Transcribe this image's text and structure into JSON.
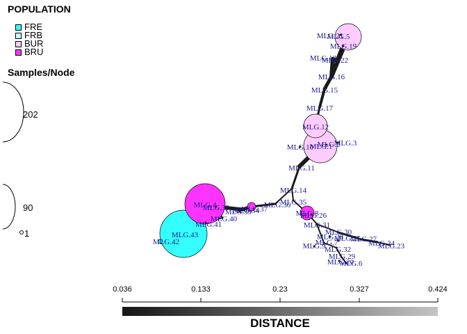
{
  "legend": {
    "population_title": "POPULATION",
    "populations": [
      {
        "label": "FRE",
        "color": "#33ffff"
      },
      {
        "label": "FRB",
        "color": "#ccffff"
      },
      {
        "label": "BUR",
        "color": "#ffccff"
      },
      {
        "label": "BRU",
        "color": "#ff33ff"
      }
    ],
    "samples_title": "Samples/Node",
    "sizes": [
      "202",
      "90",
      "1"
    ]
  },
  "scale": {
    "title": "DISTANCE",
    "ticks": [
      "0.036",
      "0.133",
      "0.23",
      "0.327",
      "0.424"
    ]
  },
  "colors": {
    "node_label": "#1a1a8c",
    "edge": "#1a1a1a",
    "outline": "#000000"
  },
  "nodes": [
    {
      "id": "MLG.5",
      "label": "MLG.5",
      "color": "#ffccff"
    },
    {
      "id": "MLG.21",
      "label": "MLG.21",
      "color": "#ffccff"
    },
    {
      "id": "MLG.19",
      "label": "MLG.19",
      "color": "#ffccff"
    },
    {
      "id": "MLG.22",
      "label": "MLG.22",
      "color": "#ffccff"
    },
    {
      "id": "MLG.18",
      "label": "MLG.18",
      "color": "#ffccff"
    },
    {
      "id": "MLG.16",
      "label": "MLG.16",
      "color": "#ffccff"
    },
    {
      "id": "MLG.15",
      "label": "MLG.15",
      "color": "#ffccff"
    },
    {
      "id": "MLG.17",
      "label": "MLG.17",
      "color": "#ffccff"
    },
    {
      "id": "MLG.12",
      "label": "MLG.12",
      "color": "#ffccff"
    },
    {
      "id": "MLG.1",
      "label": "MLG.1",
      "color": "#ffccff"
    },
    {
      "id": "MLG.2",
      "label": "MLG.2",
      "color": "#ffccff"
    },
    {
      "id": "MLG.10",
      "label": "MLG.10",
      "color": "#ffccff"
    },
    {
      "id": "MLG.3",
      "label": "MLG.3",
      "color": "#ffccff"
    },
    {
      "id": "MLG.11",
      "label": "MLG.11",
      "color": "#ffccff"
    },
    {
      "id": "MLG.14",
      "label": "MLG.14",
      "color": "#ffccff"
    },
    {
      "id": "MLG.35",
      "label": "MLG.35",
      "color": "#ffccff"
    },
    {
      "id": "MLG.8",
      "label": "MLG.8",
      "color": "#ff33ff"
    },
    {
      "id": "MLG.26",
      "label": "MLG.26",
      "color": "#ffccff"
    },
    {
      "id": "MLG.36",
      "label": "MLG.36",
      "color": "#ffccff"
    },
    {
      "id": "MLG.37",
      "label": "MLG.37",
      "color": "#ff33ff"
    },
    {
      "id": "MLG.34",
      "label": "MLG.34",
      "color": "#ff33ff"
    },
    {
      "id": "MLG.39",
      "label": "MLG.39",
      "color": "#ff33ff"
    },
    {
      "id": "MLG.33",
      "label": "MLG.33",
      "color": "#ff33ff"
    },
    {
      "id": "MLG.4",
      "label": "MLG.4",
      "color": "#ff33ff"
    },
    {
      "id": "MLG.40",
      "label": "MLG.40",
      "color": "#ff33ff"
    },
    {
      "id": "MLG.41",
      "label": "MLG.41",
      "color": "#ff33ff"
    },
    {
      "id": "MLG.43",
      "label": "MLG.43",
      "color": "#33ffff"
    },
    {
      "id": "MLG.42",
      "label": "MLG.42",
      "color": "#33ffff"
    },
    {
      "id": "MLG.31",
      "label": "MLG.31",
      "color": "#ffccff"
    },
    {
      "id": "MLG.30",
      "label": "MLG.30",
      "color": "#ffccff"
    },
    {
      "id": "MLG.28",
      "label": "MLG.28",
      "color": "#ffccff"
    },
    {
      "id": "MLG.27",
      "label": "MLG.27",
      "color": "#ffccff"
    },
    {
      "id": "MLG.24",
      "label": "MLG.24",
      "color": "#ffccff"
    },
    {
      "id": "MLG.23",
      "label": "MLG.23",
      "color": "#ffccff"
    },
    {
      "id": "MLG.7",
      "label": "MLG.7",
      "color": "#ffccff"
    },
    {
      "id": "MLG.9",
      "label": "MLG.9",
      "color": "#ffccff"
    },
    {
      "id": "MLG.32",
      "label": "MLG.32",
      "color": "#ffccff"
    },
    {
      "id": "MLG.25",
      "label": "MLG.25",
      "color": "#ffccff"
    },
    {
      "id": "MLG.29",
      "label": "MLG.29",
      "color": "#ffccff"
    },
    {
      "id": "MLG.20",
      "label": "MLG.20",
      "color": "#ffccff"
    },
    {
      "id": "MLG.6",
      "label": "MLG.6",
      "color": "#ffccff"
    }
  ],
  "edges": [
    [
      "MLG.5",
      "MLG.19"
    ],
    [
      "MLG.19",
      "MLG.22"
    ],
    [
      "MLG.22",
      "MLG.18"
    ],
    [
      "MLG.5",
      "MLG.16"
    ],
    [
      "MLG.18",
      "MLG.16"
    ],
    [
      "MLG.16",
      "MLG.15"
    ],
    [
      "MLG.15",
      "MLG.17"
    ],
    [
      "MLG.17",
      "MLG.12"
    ],
    [
      "MLG.12",
      "MLG.1"
    ],
    [
      "MLG.1",
      "MLG.11"
    ],
    [
      "MLG.11",
      "MLG.14"
    ],
    [
      "MLG.14",
      "MLG.35"
    ],
    [
      "MLG.35",
      "MLG.8"
    ],
    [
      "MLG.14",
      "MLG.36"
    ],
    [
      "MLG.36",
      "MLG.37"
    ],
    [
      "MLG.37",
      "MLG.34"
    ],
    [
      "MLG.34",
      "MLG.33"
    ],
    [
      "MLG.33",
      "MLG.40"
    ],
    [
      "MLG.40",
      "MLG.41"
    ],
    [
      "MLG.41",
      "MLG.43"
    ],
    [
      "MLG.43",
      "MLG.42"
    ],
    [
      "MLG.8",
      "MLG.31"
    ],
    [
      "MLG.31",
      "MLG.30"
    ],
    [
      "MLG.30",
      "MLG.27"
    ],
    [
      "MLG.27",
      "MLG.24"
    ],
    [
      "MLG.24",
      "MLG.23"
    ],
    [
      "MLG.31",
      "MLG.7"
    ],
    [
      "MLG.7",
      "MLG.32"
    ],
    [
      "MLG.32",
      "MLG.29"
    ],
    [
      "MLG.29",
      "MLG.6"
    ]
  ]
}
